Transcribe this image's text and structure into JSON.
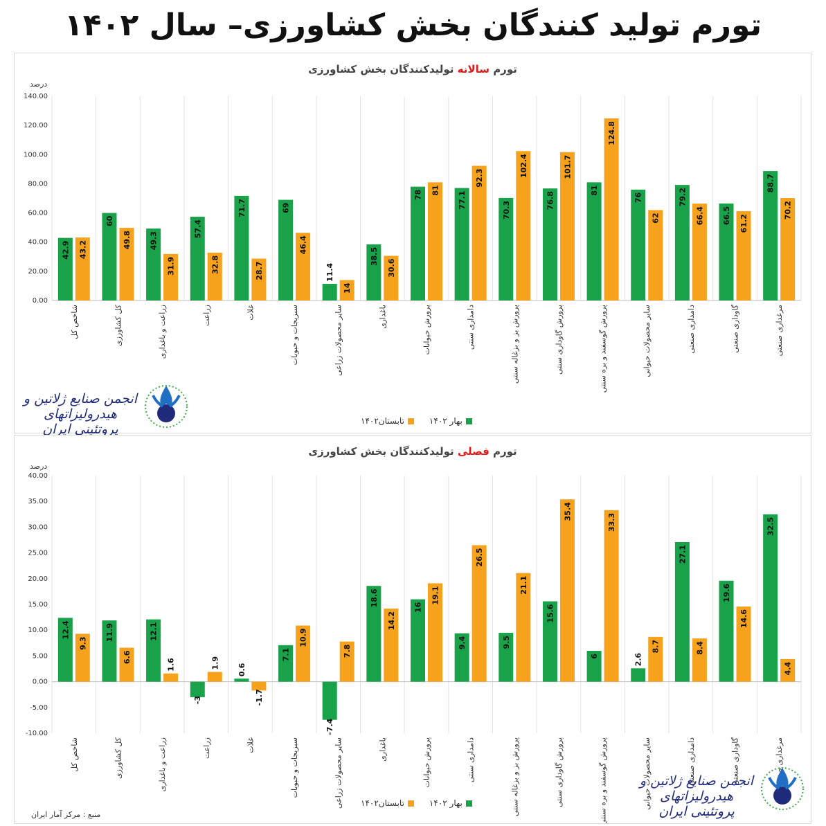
{
  "header": {
    "title": "تورم تولید کنندگان بخش کشاورزی– سال ۱۴۰۲"
  },
  "colors": {
    "spring": "#1aa24a",
    "summer": "#f6a21d",
    "title_accent": "#e01818"
  },
  "legend": {
    "spring": "بهار ۱۴۰۲",
    "summer": "تابستان۱۴۰۲"
  },
  "unit_label": "درصد",
  "logo": {
    "script_text": "انجمن صنایع ژلاتین و هیدرولیزاتهای پروتئینی ایران",
    "emblem_icon": "association-emblem-icon"
  },
  "source": "منبع : مرکز آمار ایران",
  "chart_data": [
    {
      "type": "bar",
      "title_pre": "تورم ",
      "title_accent": "سالانه",
      "title_post": " تولیدکنندگان بخش کشاورزی",
      "ylabel": "درصد",
      "ylim": [
        0,
        140
      ],
      "yticks": [
        "140.00",
        "120.00",
        "100.00",
        "80.00",
        "60.00",
        "40.00",
        "20.00",
        "0.00"
      ],
      "ytick_values": [
        140,
        120,
        100,
        80,
        60,
        40,
        20,
        0
      ],
      "categories": [
        "شاخص کل",
        "کل کشاورزی",
        "زراعت و باغداری",
        "زراعت",
        "غلات",
        "سبزیجات و حبوبات",
        "سایر محصولات زراعی",
        "باغداری",
        "پرورش حیوانات",
        "دامداری سنتی",
        "پرورش بز و بزغاله سنتی",
        "پرورش گاوداری سنتی",
        "پرورش گوسفند و بره سنتی",
        "سایر محصولات حیوانی",
        "دامداری صنعتی",
        "گاوداری صنعتی",
        "مرغداری صنعتی"
      ],
      "series": [
        {
          "name": "بهار ۱۴۰۲",
          "values": [
            42.9,
            60,
            49.3,
            57.4,
            71.7,
            69,
            11.4,
            38.5,
            78,
            77.1,
            70.3,
            76.8,
            81,
            76,
            79.2,
            66.5,
            88.7
          ]
        },
        {
          "name": "تابستان۱۴۰۲",
          "values": [
            43.2,
            49.8,
            31.9,
            32.8,
            28.7,
            46.4,
            14,
            30.6,
            81,
            92.3,
            102.4,
            101.7,
            124.8,
            62,
            66.4,
            61.2,
            70.2
          ]
        }
      ],
      "grid": true,
      "legend_position": "bottom-left"
    },
    {
      "type": "bar",
      "title_pre": "تورم ",
      "title_accent": "فصلی",
      "title_post": " تولیدکنندگان بخش کشاورزی",
      "ylabel": "درصد",
      "ylim": [
        -10,
        40
      ],
      "yticks": [
        "40.00",
        "35.00",
        "30.00",
        "25.00",
        "20.00",
        "15.00",
        "10.00",
        "5.00",
        "0.00",
        "-5.00",
        "-10.00"
      ],
      "ytick_values": [
        40,
        35,
        30,
        25,
        20,
        15,
        10,
        5,
        0,
        -5,
        -10
      ],
      "categories": [
        "شاخص کل",
        "کل کشاورزی",
        "زراعت و باغداری",
        "زراعت",
        "غلات",
        "سبزیجات و حبوبات",
        "سایر محصولات زراعی",
        "باغداری",
        "پرورش حیوانات",
        "دامداری سنتی",
        "پرورش بز و بزغاله سنتی",
        "پرورش گاوداری سنتی",
        "پرورش گوسفند و بره سنتی",
        "سایر محصولات حیوانی",
        "دامداری صنعتی",
        "گاوداری صنعتی",
        "مرغداری صنعتی"
      ],
      "series": [
        {
          "name": "بهار ۱۴۰۲",
          "values": [
            12.4,
            11.9,
            12.1,
            -3,
            0.6,
            7.1,
            -7.4,
            18.6,
            16,
            9.4,
            9.5,
            15.6,
            6,
            2.6,
            27.1,
            19.6,
            32.5
          ]
        },
        {
          "name": "تابستان۱۴۰۲",
          "values": [
            9.3,
            6.6,
            1.6,
            1.9,
            -1.7,
            10.9,
            7.8,
            14.2,
            19.1,
            26.5,
            21.1,
            35.4,
            33.3,
            8.7,
            8.4,
            14.6,
            4.4
          ]
        }
      ],
      "grid": true,
      "legend_position": "bottom-left"
    }
  ]
}
